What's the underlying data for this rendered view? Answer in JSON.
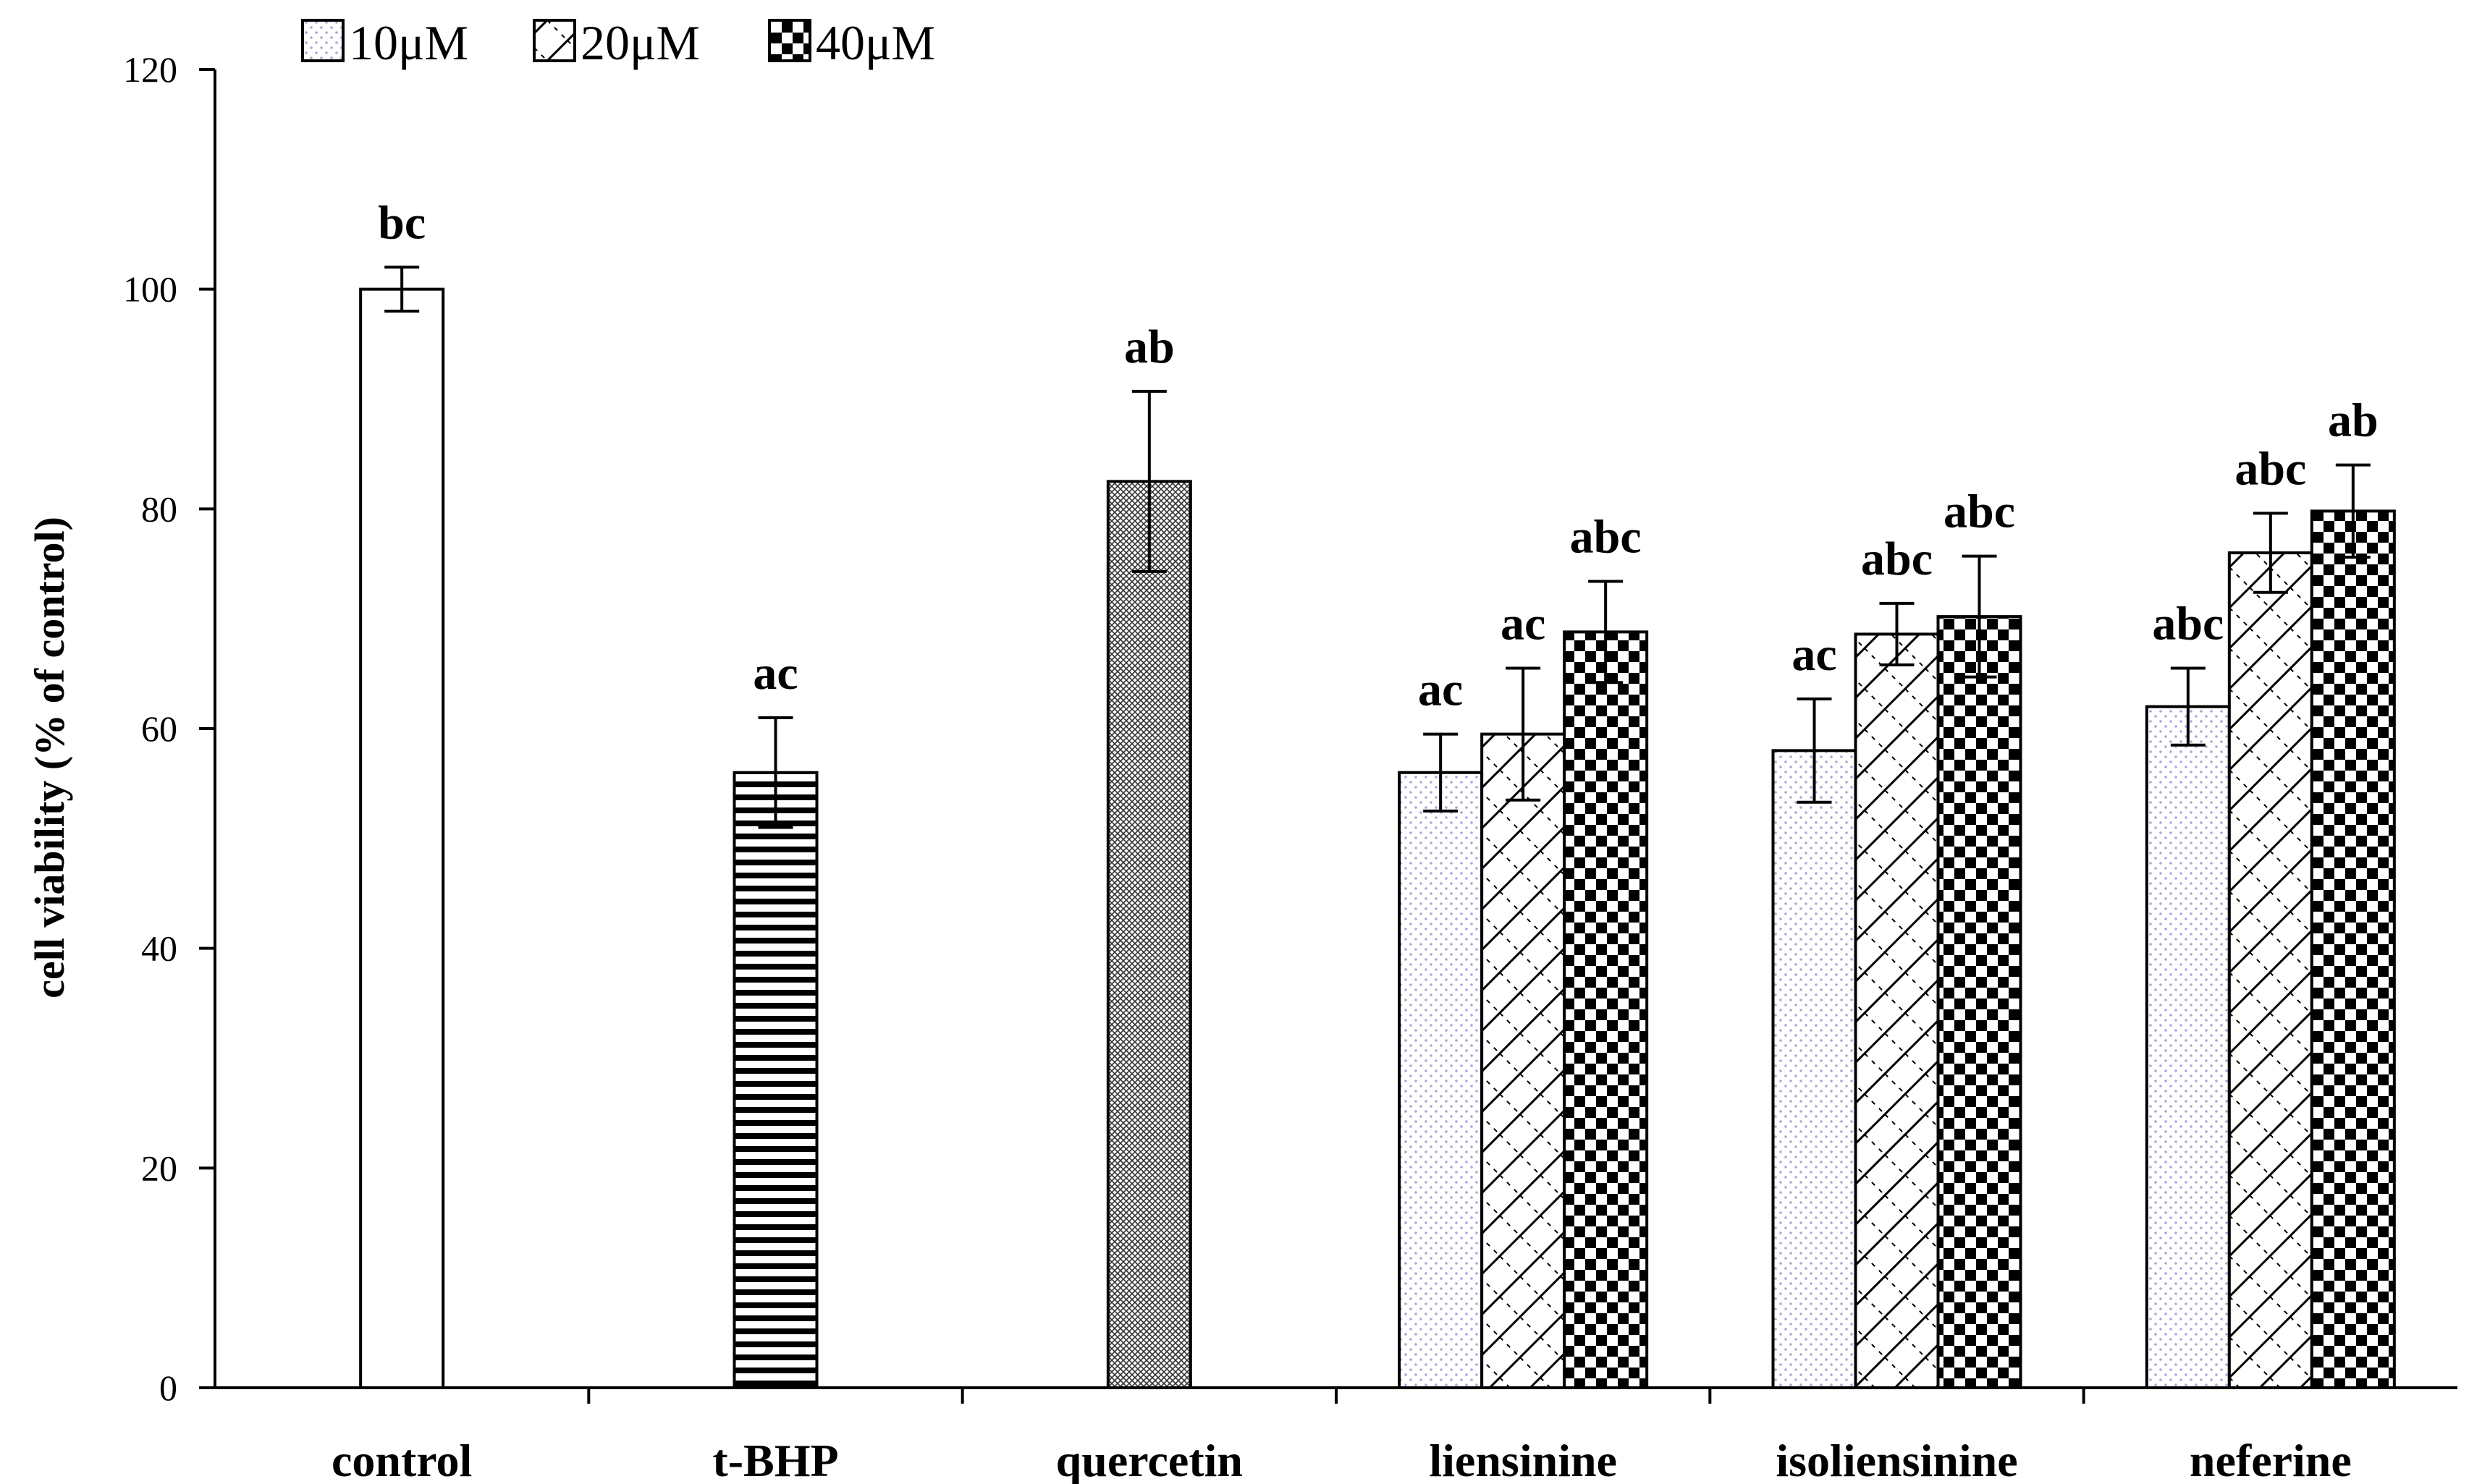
{
  "chart_data": {
    "type": "bar",
    "ylabel": "cell viability (% of control)",
    "xlabel": "",
    "ylim": [
      0,
      120
    ],
    "yticks": [
      0,
      20,
      40,
      60,
      80,
      100,
      120
    ],
    "legend": {
      "placement": "top-left",
      "entries": [
        {
          "label": "10μM",
          "pattern": "dots"
        },
        {
          "label": "20μM",
          "pattern": "diag"
        },
        {
          "label": "40μM",
          "pattern": "check"
        }
      ]
    },
    "groups": [
      {
        "category": "control",
        "bars": [
          {
            "value": 100,
            "error": 2,
            "sig": "bc",
            "pattern": "blank"
          }
        ]
      },
      {
        "category": "t-BHP",
        "bars": [
          {
            "value": 56,
            "error": 5,
            "sig": "ac",
            "pattern": "hstripe"
          }
        ]
      },
      {
        "category": "quercetin",
        "bars": [
          {
            "value": 82.5,
            "error": 8.2,
            "sig": "ab",
            "pattern": "crosshatch"
          }
        ]
      },
      {
        "category": "liensinine",
        "bars": [
          {
            "value": 56,
            "error": 3.5,
            "sig": "ac",
            "pattern": "dots"
          },
          {
            "value": 59.5,
            "error": 6,
            "sig": "ac",
            "pattern": "diag"
          },
          {
            "value": 68.8,
            "error": 4.6,
            "sig": "abc",
            "pattern": "check"
          }
        ]
      },
      {
        "category": "isoliensinine",
        "bars": [
          {
            "value": 58,
            "error": 4.7,
            "sig": "ac",
            "pattern": "dots"
          },
          {
            "value": 68.6,
            "error": 2.8,
            "sig": "abc",
            "pattern": "diag"
          },
          {
            "value": 70.2,
            "error": 5.5,
            "sig": "abc",
            "pattern": "check"
          }
        ]
      },
      {
        "category": "neferine",
        "bars": [
          {
            "value": 62,
            "error": 3.5,
            "sig": "abc",
            "pattern": "dots"
          },
          {
            "value": 76,
            "error": 3.6,
            "sig": "abc",
            "pattern": "diag"
          },
          {
            "value": 79.8,
            "error": 4.2,
            "sig": "ab",
            "pattern": "check"
          }
        ]
      }
    ]
  }
}
